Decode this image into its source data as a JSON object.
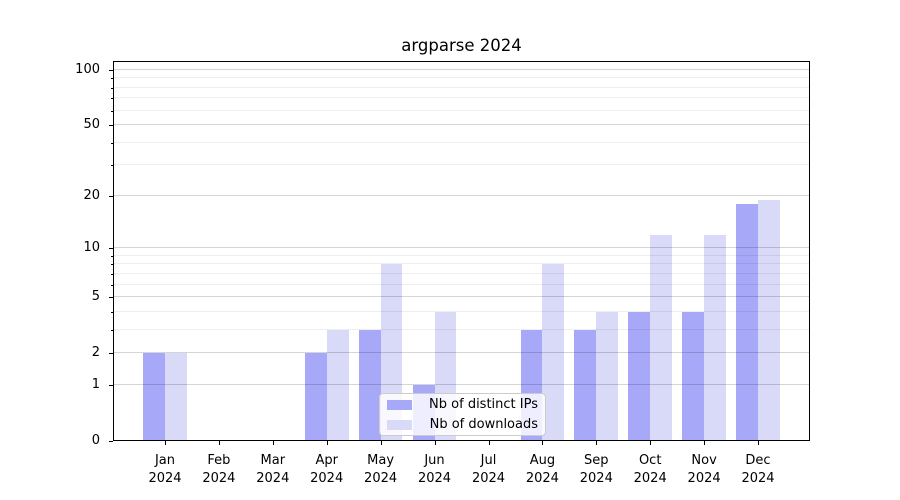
{
  "title": "argparse 2024",
  "legend": {
    "ips_label": "Nb of distinct IPs",
    "downloads_label": "Nb of downloads"
  },
  "colors": {
    "ips": "#a8a8f8",
    "downloads": "#d9d9f8"
  },
  "y_axis": {
    "major_tick_labels": [
      "0",
      "1",
      "2",
      "5",
      "10",
      "20",
      "50",
      "100"
    ]
  },
  "x_axis": {
    "year": "2024",
    "months": [
      "Jan",
      "Feb",
      "Mar",
      "Apr",
      "May",
      "Jun",
      "Jul",
      "Aug",
      "Sep",
      "Oct",
      "Nov",
      "Dec"
    ]
  },
  "chart_data": {
    "type": "bar",
    "title": "argparse 2024",
    "categories": [
      "Jan 2024",
      "Feb 2024",
      "Mar 2024",
      "Apr 2024",
      "May 2024",
      "Jun 2024",
      "Jul 2024",
      "Aug 2024",
      "Sep 2024",
      "Oct 2024",
      "Nov 2024",
      "Dec 2024"
    ],
    "series": [
      {
        "name": "Nb of distinct IPs",
        "values": [
          2,
          0,
          0,
          2,
          3,
          1,
          0,
          3,
          3,
          4,
          4,
          18
        ]
      },
      {
        "name": "Nb of downloads",
        "values": [
          2,
          0,
          0,
          3,
          8,
          4,
          0,
          8,
          4,
          12,
          12,
          19
        ]
      }
    ],
    "xlabel": "",
    "ylabel": "",
    "yscale": "log1p",
    "ylim": [
      0,
      112
    ],
    "y_major_ticks": [
      0,
      1,
      2,
      5,
      10,
      20,
      50,
      100
    ],
    "y_minor_ticks": [
      3,
      4,
      6,
      7,
      8,
      9,
      30,
      40,
      60,
      70,
      80,
      90
    ],
    "grid": "on",
    "legend_position": "lower center"
  }
}
